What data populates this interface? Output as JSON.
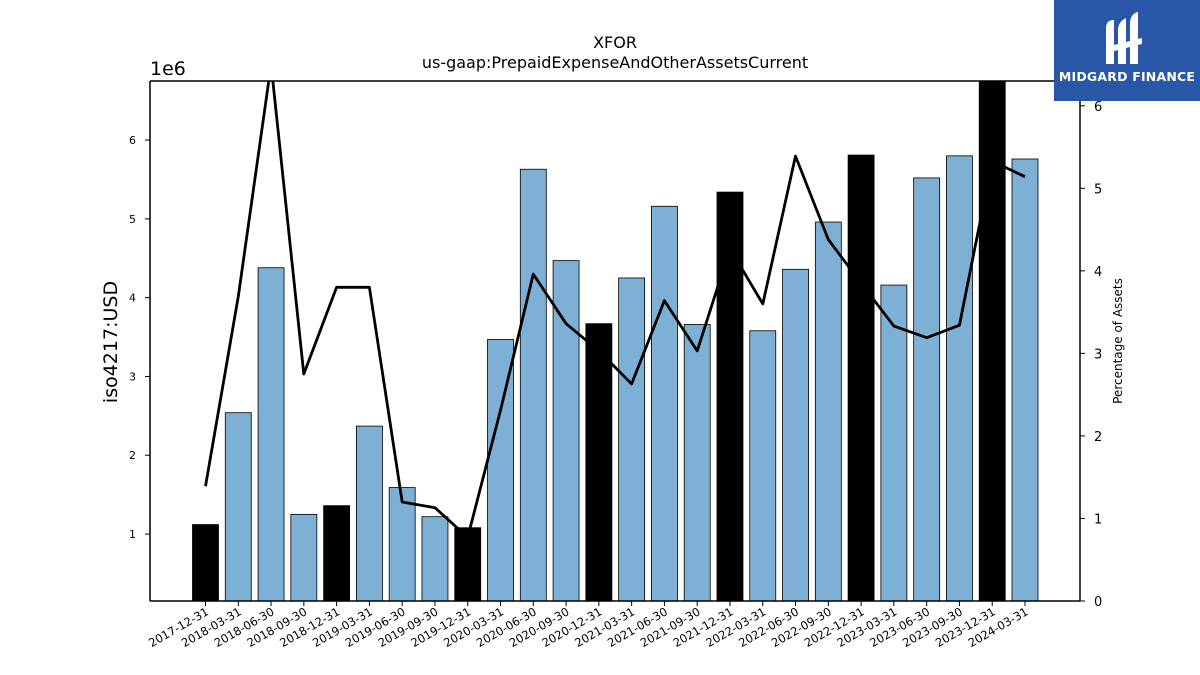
{
  "chart_data": {
    "type": "bar",
    "title": "XFOR",
    "subtitle": "us-gaap:PrepaidExpenseAndOtherAssetsCurrent",
    "ylabel": "iso4217:USD",
    "y_multiplier_label": "1e6",
    "y2label": "Percentage of Assets",
    "ylim": [
      0.15,
      6.75
    ],
    "y2lim": [
      0,
      6.3
    ],
    "yticks": [
      "1",
      "2",
      "3",
      "4",
      "5",
      "6"
    ],
    "y2ticks": [
      "0",
      "1",
      "2",
      "3",
      "4",
      "5",
      "6"
    ],
    "categories": [
      "2017-12-31",
      "2018-03-31",
      "2018-06-30",
      "2018-09-30",
      "2018-12-31",
      "2019-03-31",
      "2019-06-30",
      "2019-09-30",
      "2019-12-31",
      "2020-03-31",
      "2020-06-30",
      "2020-09-30",
      "2020-12-31",
      "2021-03-31",
      "2021-06-30",
      "2021-09-30",
      "2021-12-31",
      "2022-03-31",
      "2022-06-30",
      "2022-09-30",
      "2022-12-31",
      "2023-03-31",
      "2023-06-30",
      "2023-09-30",
      "2023-12-31",
      "2024-03-31"
    ],
    "series": [
      {
        "type": "bar",
        "values": [
          1.12,
          2.54,
          4.38,
          1.25,
          1.36,
          2.37,
          1.59,
          1.22,
          1.08,
          3.47,
          5.63,
          4.47,
          3.67,
          4.25,
          5.16,
          3.66,
          5.34,
          3.58,
          4.36,
          4.96,
          5.81,
          4.16,
          5.52,
          5.8,
          6.75,
          5.76
        ],
        "highlight": [
          true,
          false,
          false,
          false,
          true,
          false,
          false,
          false,
          true,
          false,
          false,
          false,
          true,
          false,
          false,
          false,
          true,
          false,
          false,
          false,
          true,
          false,
          false,
          false,
          true,
          false
        ]
      },
      {
        "type": "line",
        "axis": "secondary",
        "values": [
          1.39,
          3.69,
          6.5,
          2.75,
          3.8,
          3.8,
          1.2,
          1.13,
          0.77,
          2.31,
          3.96,
          3.36,
          3.03,
          2.63,
          3.64,
          3.03,
          4.27,
          3.6,
          5.39,
          4.38,
          3.85,
          3.33,
          3.19,
          3.34,
          5.33,
          5.14
        ]
      }
    ],
    "colors": {
      "bar": "#7eafd4",
      "highlight_bar": "#000000",
      "line": "#000000"
    }
  },
  "logo": {
    "text": "MIDGARD FINANCE",
    "background": "#2a56a8"
  }
}
